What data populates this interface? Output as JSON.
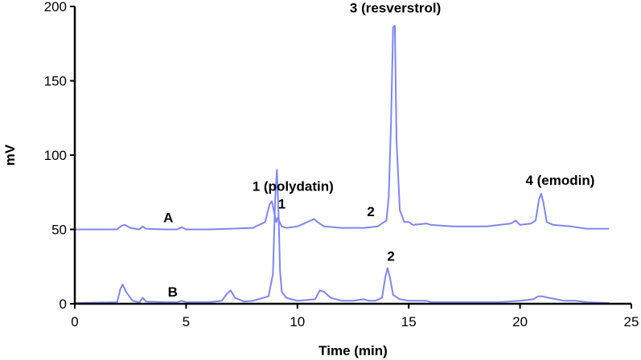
{
  "chart_data": {
    "type": "line",
    "xlabel": "Time (min)",
    "ylabel": "mV",
    "xlim": [
      0,
      25
    ],
    "ylim": [
      0,
      200
    ],
    "xticks": [
      "0",
      "5",
      "10",
      "15",
      "20",
      "25"
    ],
    "yticks": [
      "0",
      "50",
      "100",
      "150",
      "200"
    ],
    "grid": false,
    "trace_color": "#7f86f0",
    "series": [
      {
        "name": "A",
        "x": [
          0.0,
          1.9,
          2.1,
          2.25,
          2.5,
          2.9,
          3.05,
          3.2,
          4.0,
          4.6,
          4.8,
          5.0,
          6.0,
          7.0,
          8.0,
          8.55,
          8.75,
          8.85,
          8.95,
          9.05,
          9.12,
          9.2,
          9.3,
          9.5,
          10.0,
          10.6,
          10.75,
          10.9,
          11.2,
          12.0,
          13.0,
          13.6,
          13.8,
          14.0,
          14.1,
          14.2,
          14.3,
          14.38,
          14.45,
          14.6,
          14.8,
          15.0,
          15.2,
          15.8,
          16.0,
          17.0,
          18.5,
          19.6,
          19.8,
          20.0,
          20.5,
          20.7,
          20.85,
          20.95,
          21.05,
          21.2,
          21.5,
          22.3,
          22.5,
          23.0,
          24.0
        ],
        "y": [
          50,
          50,
          52.5,
          53,
          51,
          50,
          52,
          50.5,
          50,
          50,
          51.5,
          50,
          50,
          50.5,
          51,
          55,
          67,
          69,
          62,
          55,
          58,
          55,
          52,
          51,
          52,
          56,
          57,
          55,
          52,
          51,
          51,
          52,
          54,
          56,
          72,
          120,
          186,
          187,
          110,
          63,
          55,
          55,
          53,
          54,
          53,
          52,
          52,
          54,
          56,
          53,
          54,
          56,
          70,
          74,
          68,
          55,
          53,
          52,
          51.5,
          50.5,
          50.5
        ]
      },
      {
        "name": "B",
        "x": [
          0.0,
          1.9,
          2.05,
          2.15,
          2.3,
          2.6,
          2.9,
          3.05,
          3.2,
          4.0,
          4.6,
          4.8,
          5.0,
          6.0,
          6.6,
          6.85,
          7.0,
          7.2,
          7.6,
          8.0,
          8.7,
          8.9,
          9.0,
          9.08,
          9.15,
          9.22,
          9.3,
          9.5,
          10.0,
          10.8,
          11.0,
          11.2,
          11.5,
          12.0,
          12.5,
          13.0,
          13.2,
          13.5,
          13.8,
          13.95,
          14.05,
          14.15,
          14.3,
          14.6,
          15.0,
          15.8,
          16.0,
          17.0,
          18.0,
          19.0,
          20.0,
          20.6,
          20.8,
          21.0,
          21.3,
          22.0,
          22.5,
          23.0,
          24.0
        ],
        "y": [
          0.5,
          1,
          10,
          13,
          8,
          2,
          1,
          4,
          1.5,
          1,
          1,
          2,
          1,
          1,
          2,
          7,
          9,
          4,
          1.5,
          2,
          5,
          20,
          70,
          90,
          62,
          22,
          8,
          4,
          2,
          3,
          9,
          8,
          4,
          2,
          2,
          3,
          2,
          2,
          4,
          18,
          24,
          18,
          6,
          3,
          2,
          2,
          1,
          1,
          1,
          1,
          2,
          3,
          5,
          5,
          4,
          2,
          2,
          1,
          0.5
        ]
      }
    ],
    "annotations": [
      {
        "text": "A",
        "x": 4.2,
        "y": 55
      },
      {
        "text": "B",
        "x": 4.4,
        "y": 5
      },
      {
        "text": "1 (polydatin)",
        "x": 9.8,
        "y": 76
      },
      {
        "text": "1",
        "x": 9.3,
        "y": 64
      },
      {
        "text": "2",
        "x": 13.3,
        "y": 59
      },
      {
        "text": "3 (resverstrol)",
        "x": 14.4,
        "y": 196
      },
      {
        "text": "4 (emodin)",
        "x": 21.8,
        "y": 80
      },
      {
        "text": "2",
        "x": 14.2,
        "y": 29
      }
    ]
  }
}
